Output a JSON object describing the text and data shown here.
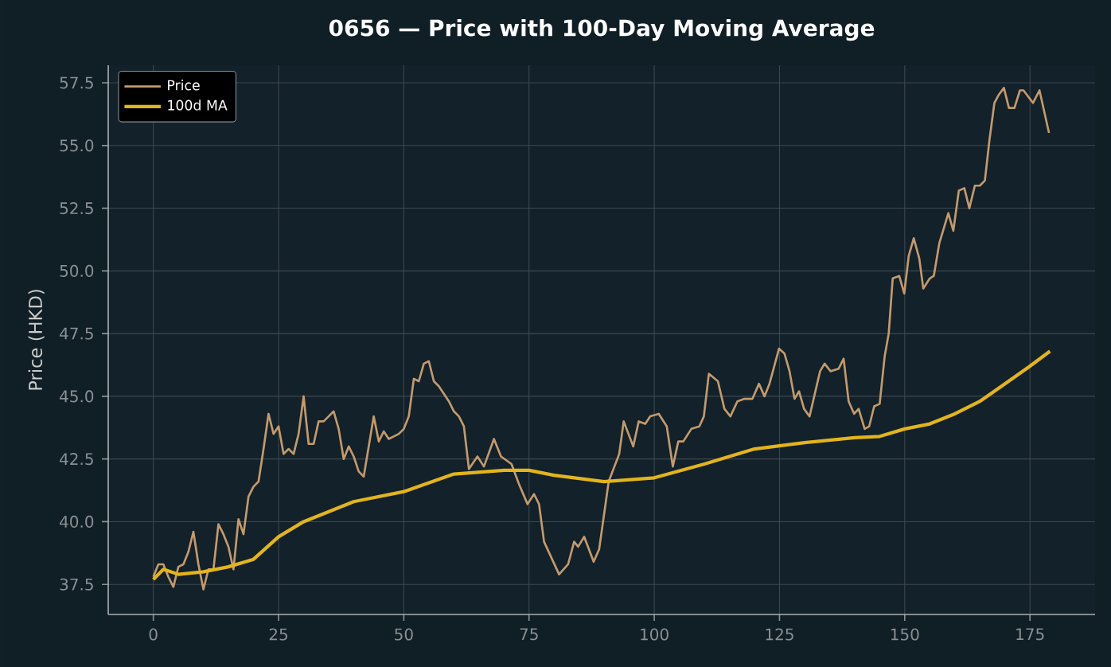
{
  "chart_data": {
    "type": "line",
    "title": "0656 — Price with 100-Day Moving Average",
    "ylabel": "Price (HKD)",
    "series": [
      {
        "name": "Price",
        "color": "#c49a6c",
        "x": [
          0,
          1,
          2,
          3,
          4,
          5,
          6,
          7,
          8,
          9,
          10,
          11,
          12,
          13,
          14,
          15,
          16,
          17,
          18,
          19,
          20,
          21,
          22,
          23,
          24,
          25,
          26,
          27,
          28,
          29,
          30,
          31,
          32,
          33,
          34,
          35,
          36,
          37,
          38,
          39,
          40,
          41,
          42,
          43,
          44,
          45,
          46,
          47,
          48,
          49,
          50,
          51,
          52,
          53,
          54,
          55,
          56,
          57,
          58,
          59,
          60,
          61,
          62,
          63,
          64.7,
          66,
          68,
          69.4,
          71.5,
          73,
          74.7,
          76,
          77,
          78,
          81,
          82.8,
          84,
          84.8,
          86,
          87.9,
          89,
          90.9,
          93,
          93.9,
          95.8,
          96.9,
          98.2,
          99.2,
          100.9,
          102.5,
          103.7,
          104.8,
          105.8,
          107.4,
          109,
          109.9,
          110.9,
          112.7,
          114,
          115.2,
          116.6,
          118,
          119.6,
          120.9,
          122,
          123,
          124.9,
          126,
          127,
          128,
          128.9,
          129.9,
          131,
          133.1,
          134,
          135.2,
          136.8,
          137.8,
          138.8,
          139.9,
          140.8,
          142,
          142.9,
          143.9,
          145,
          146,
          146.8,
          147.6,
          148.9,
          149.9,
          150.8,
          151.8,
          152.9,
          153.7,
          155,
          155.8,
          156.9,
          158.7,
          159.7,
          160.8,
          161.9,
          162.9,
          164,
          165,
          166,
          166.9,
          167.9,
          168.7,
          169.8,
          170.8,
          171.9,
          173,
          173.7,
          175.6,
          176.9,
          178.8
        ],
        "values": [
          37.8,
          38.3,
          38.3,
          37.8,
          37.4,
          38.2,
          38.3,
          38.8,
          39.6,
          38.3,
          37.3,
          38.1,
          38.1,
          39.9,
          39.5,
          39.0,
          38.1,
          40.1,
          39.5,
          41.0,
          41.4,
          41.6,
          42.9,
          44.3,
          43.5,
          43.8,
          42.7,
          42.9,
          42.7,
          43.5,
          45.0,
          43.1,
          43.1,
          44.0,
          44.0,
          44.2,
          44.4,
          43.7,
          42.5,
          43.0,
          42.6,
          42.0,
          41.8,
          43.0,
          44.2,
          43.2,
          43.6,
          43.3,
          43.4,
          43.5,
          43.7,
          44.2,
          45.7,
          45.6,
          46.3,
          46.4,
          45.6,
          45.4,
          45.1,
          44.8,
          44.4,
          44.2,
          43.8,
          42.1,
          42.6,
          42.2,
          43.3,
          42.6,
          42.3,
          41.5,
          40.7,
          41.1,
          40.7,
          39.2,
          37.9,
          38.3,
          39.2,
          39.0,
          39.4,
          38.4,
          38.9,
          41.6,
          42.7,
          44.0,
          43.0,
          44.0,
          43.9,
          44.2,
          44.3,
          43.8,
          42.2,
          43.2,
          43.2,
          43.7,
          43.8,
          44.2,
          45.9,
          45.6,
          44.5,
          44.2,
          44.8,
          44.9,
          44.9,
          45.5,
          45.0,
          45.5,
          46.9,
          46.7,
          46.0,
          44.9,
          45.2,
          44.5,
          44.2,
          46.0,
          46.3,
          46.0,
          46.1,
          46.5,
          44.8,
          44.3,
          44.5,
          43.7,
          43.8,
          44.6,
          44.7,
          46.6,
          47.5,
          49.7,
          49.8,
          49.1,
          50.6,
          51.3,
          50.5,
          49.3,
          49.7,
          49.8,
          51.1,
          52.3,
          51.6,
          53.2,
          53.3,
          52.5,
          53.4,
          53.4,
          53.6,
          55.2,
          56.7,
          57.0,
          57.3,
          56.5,
          56.5,
          57.2,
          57.2,
          56.7,
          57.2,
          55.5
        ]
      },
      {
        "name": "100d MA",
        "color": "#e3b51a",
        "x": [
          0,
          2,
          5,
          10,
          15,
          20,
          25,
          30,
          40,
          50,
          60,
          70,
          75,
          80,
          90,
          100,
          110,
          120,
          130,
          140,
          145,
          150,
          155,
          160,
          165,
          170,
          175,
          179
        ],
        "values": [
          37.7,
          38.1,
          37.9,
          38.0,
          38.2,
          38.5,
          39.4,
          40.0,
          40.8,
          41.2,
          41.9,
          42.05,
          42.05,
          41.85,
          41.6,
          41.75,
          42.3,
          42.9,
          43.15,
          43.35,
          43.4,
          43.7,
          43.9,
          44.3,
          44.8,
          45.5,
          46.2,
          46.8
        ]
      }
    ],
    "xlim": [
      -9,
      188
    ],
    "ylim": [
      36.3,
      58.2
    ],
    "xticks": [
      0,
      25,
      50,
      75,
      100,
      125,
      150,
      175
    ],
    "yticks": [
      37.5,
      {
        "value": 40,
        "label": "40.0"
      },
      42.5,
      {
        "value": 45,
        "label": "45.0"
      },
      47.5,
      {
        "value": 50,
        "label": "50.0"
      },
      52.5,
      {
        "value": 55,
        "label": "55.0"
      },
      57.5
    ],
    "grid": true,
    "legend": "top left"
  }
}
